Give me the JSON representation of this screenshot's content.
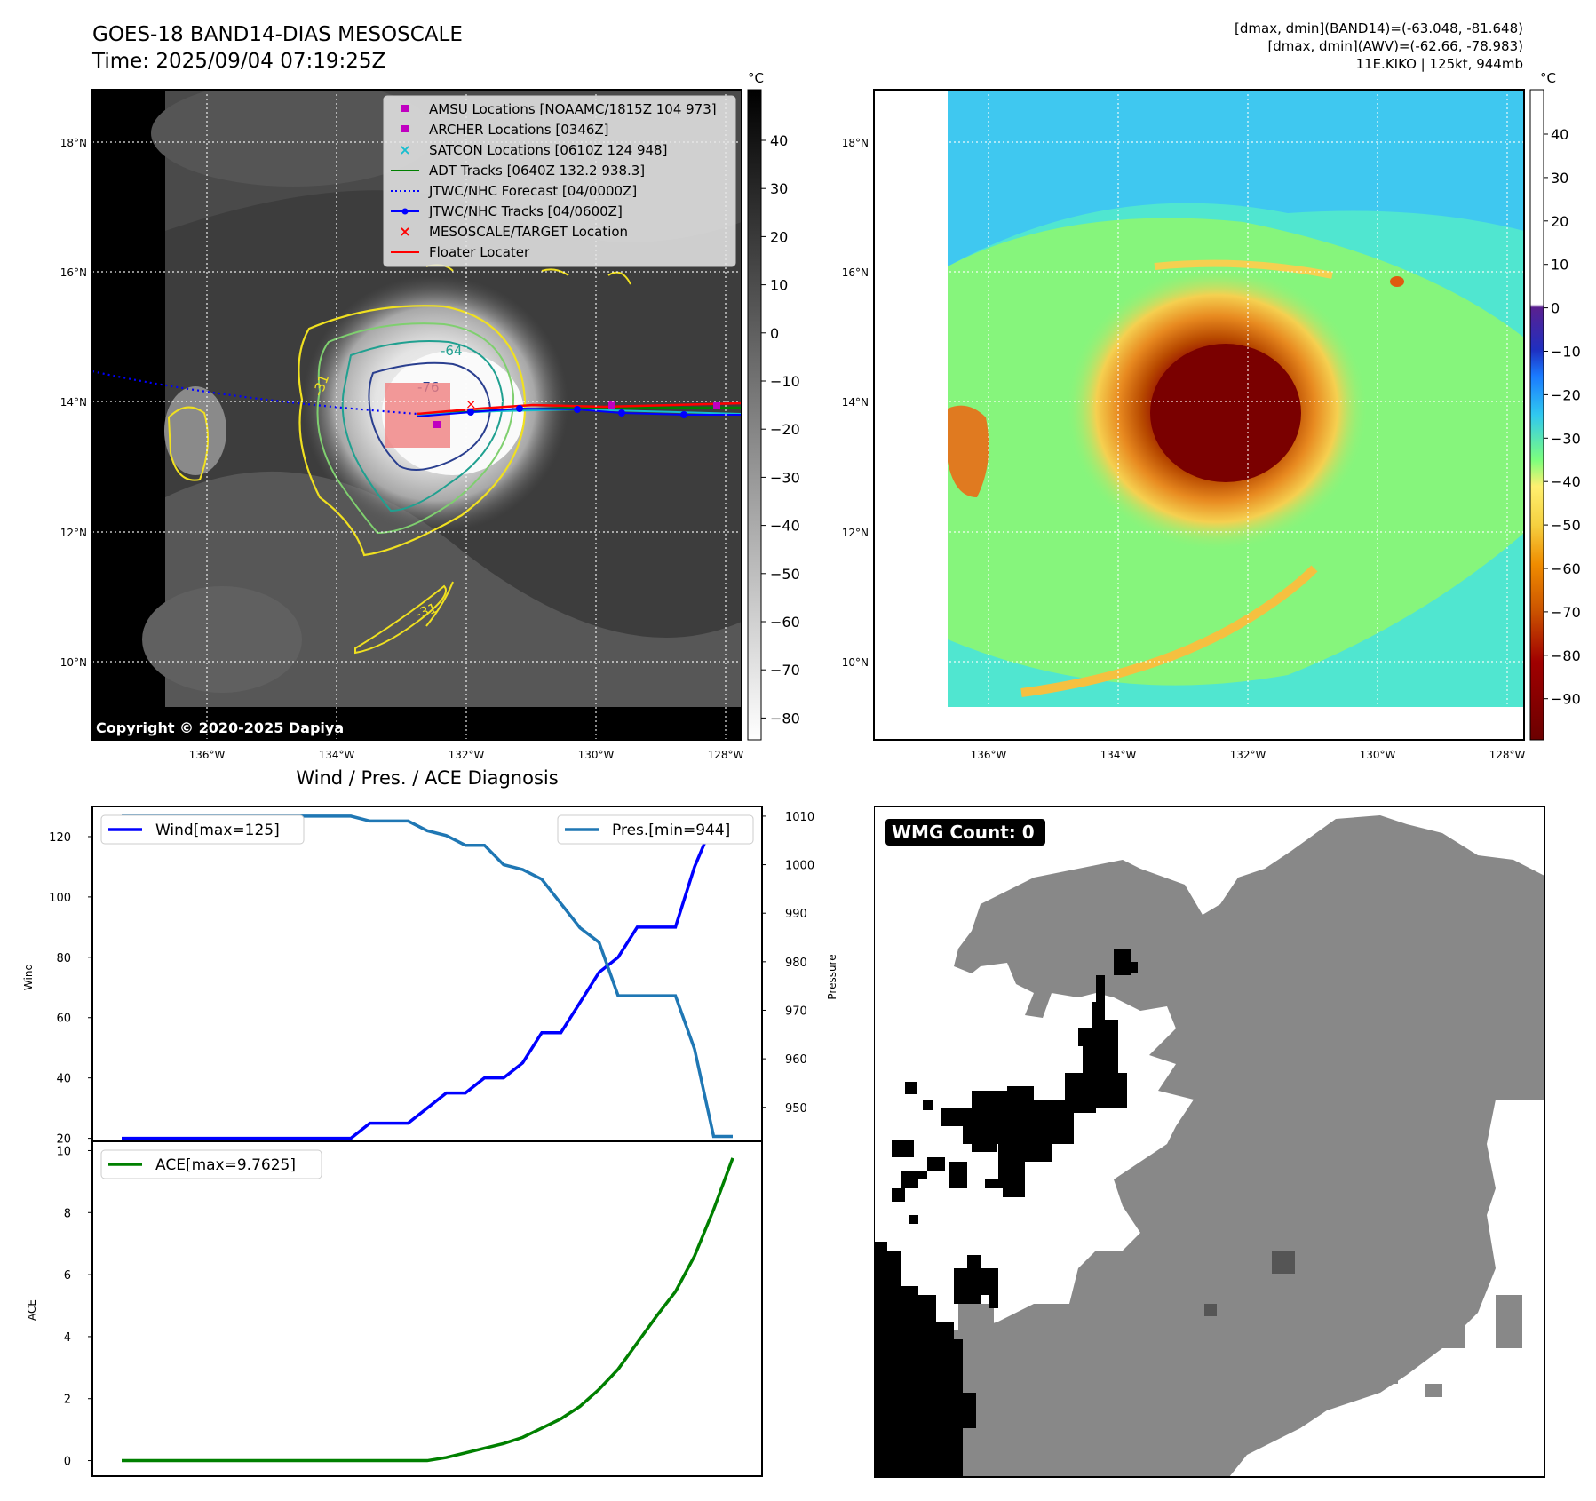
{
  "header": {
    "title": "GOES-18 BAND14-DIAS MESOSCALE",
    "time": "Time: 2025/09/04 07:19:25Z",
    "dmax_band14": "[dmax, dmin](BAND14)=(-63.048, -81.648)",
    "dmax_awv": "[dmax, dmin](AWV)=(-62.66, -78.983)",
    "storm": "11E.KIKO | 125kt, 944mb"
  },
  "map": {
    "lat_labels": [
      "18°N",
      "16°N",
      "14°N",
      "12°N",
      "10°N"
    ],
    "lon_labels": [
      "136°W",
      "134°W",
      "132°W",
      "130°W",
      "128°W"
    ],
    "copyright": "Copyright © 2020-2025 Dapiya",
    "contour_labels": [
      "-64",
      "-76",
      "-31",
      "-31"
    ]
  },
  "legend": [
    {
      "label": "AMSU Locations [NOAAMC/1815Z 104 973]",
      "color": "#c000c0",
      "marker": "square"
    },
    {
      "label": "ARCHER Locations [0346Z]",
      "color": "#c000c0",
      "marker": "square"
    },
    {
      "label": "SATCON Locations [0610Z 124 948]",
      "color": "#17becf",
      "marker": "x"
    },
    {
      "label": "ADT Tracks [0640Z 132.2 938.3]",
      "color": "#008000",
      "marker": "line"
    },
    {
      "label": "JTWC/NHC Forecast [04/0000Z]",
      "color": "#0000ff",
      "marker": "dotted"
    },
    {
      "label": "JTWC/NHC Tracks [04/0600Z]",
      "color": "#0000ff",
      "marker": "line-dot"
    },
    {
      "label": "MESOSCALE/TARGET Location",
      "color": "#ff0000",
      "marker": "x"
    },
    {
      "label": "Floater Locater",
      "color": "#ff0000",
      "marker": "line"
    }
  ],
  "colorbar_gray": {
    "unit": "°C",
    "ticks": [
      "40",
      "30",
      "20",
      "10",
      "0",
      "−10",
      "−20",
      "−30",
      "−40",
      "−50",
      "−60",
      "−70",
      "−80"
    ]
  },
  "colorbar_color": {
    "unit": "°C",
    "ticks": [
      "40",
      "30",
      "20",
      "10",
      "0",
      "−10",
      "−20",
      "−30",
      "−40",
      "−50",
      "−60",
      "−70",
      "−80",
      "−90"
    ],
    "colors": [
      "#6b0000",
      "#a00000",
      "#cc5500",
      "#f08c00",
      "#f5d040",
      "#fff070",
      "#7dff7d",
      "#50f0c0",
      "#30c8f0",
      "#1a7aff",
      "#1f2fc0",
      "#5a2090"
    ]
  },
  "wmg": {
    "label": "WMG Count: 0",
    "colors": {
      "black": "#000000",
      "gray": "#888888",
      "dark": "#555555"
    }
  },
  "chart_data": [
    {
      "type": "line",
      "title": "Wind / Pres. / ACE Diagnosis",
      "ylabel": "Wind",
      "ylabel2": "Pressure",
      "ylim": [
        19,
        130
      ],
      "ylim2": [
        943,
        1012
      ],
      "yticks": [
        20,
        40,
        60,
        80,
        100,
        120
      ],
      "yticks2": [
        950,
        960,
        970,
        980,
        990,
        1000,
        1010
      ],
      "series": [
        {
          "name": "Wind[max=125]",
          "color": "#0000ff",
          "values": [
            20,
            20,
            20,
            20,
            20,
            20,
            20,
            20,
            20,
            20,
            20,
            20,
            20,
            25,
            25,
            25,
            30,
            35,
            35,
            40,
            40,
            45,
            55,
            55,
            65,
            75,
            80,
            90,
            90,
            90,
            110,
            125,
            125
          ]
        },
        {
          "name": "Pres.[min=944]",
          "color": "#1f77b4",
          "values": [
            1010,
            1010,
            1010,
            1010,
            1010,
            1010,
            1010,
            1010,
            1010,
            1010,
            1010,
            1010,
            1010,
            1009,
            1009,
            1009,
            1007,
            1006,
            1004,
            1004,
            1000,
            999,
            997,
            992,
            987,
            984,
            973,
            973,
            973,
            973,
            962,
            944,
            944
          ]
        }
      ]
    },
    {
      "type": "line",
      "ylabel": "ACE",
      "ylim": [
        -0.5,
        10.3
      ],
      "yticks": [
        0,
        2,
        4,
        6,
        8,
        10
      ],
      "series": [
        {
          "name": "ACE[max=9.7625]",
          "color": "#008000",
          "values": [
            0,
            0,
            0,
            0,
            0,
            0,
            0,
            0,
            0,
            0,
            0,
            0,
            0,
            0,
            0,
            0,
            0,
            0.1,
            0.25,
            0.4,
            0.55,
            0.75,
            1.05,
            1.35,
            1.75,
            2.3,
            2.95,
            3.8,
            4.65,
            5.45,
            6.6,
            8.1,
            9.76
          ]
        }
      ]
    }
  ]
}
